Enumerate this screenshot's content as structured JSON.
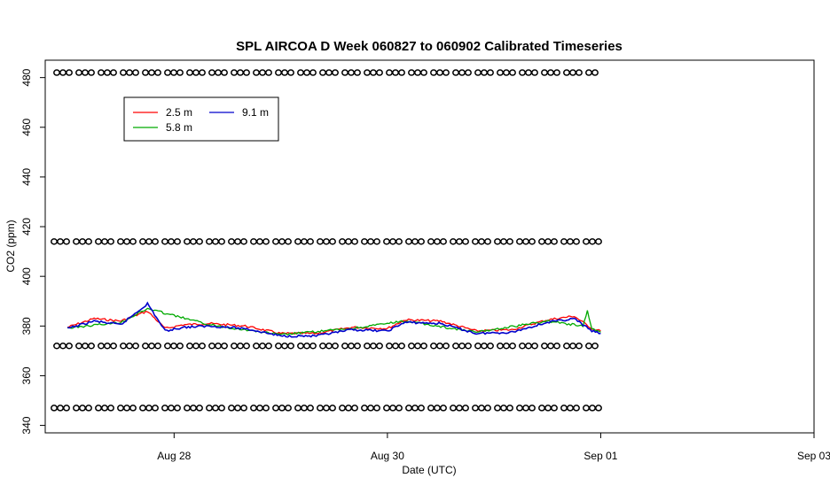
{
  "chart_data": {
    "type": "line",
    "title": "SPL AIRCOA D  Week 060827 to 060902  Calibrated Timeseries",
    "xlabel": "Date (UTC)",
    "ylabel": "CO2 (ppm)",
    "x_ticks": [
      "Aug 28",
      "Aug 30",
      "Sep 01",
      "Sep 03"
    ],
    "y_ticks": [
      340,
      360,
      380,
      400,
      420,
      440,
      460,
      480
    ],
    "xlim": [
      "2006-08-26T19:00",
      "2006-09-03T00:00"
    ],
    "ylim": [
      337,
      487
    ],
    "grid": false,
    "legend": "top-left",
    "series": [
      {
        "name": "2.5 m",
        "color": "#ff0000",
        "x": [
          "2006-08-27T00:00",
          "2006-08-27T06:00",
          "2006-08-27T12:00",
          "2006-08-27T18:00",
          "2006-08-27T22:00",
          "2006-08-28T02:00",
          "2006-08-28T08:00",
          "2006-08-28T16:00",
          "2006-08-29T00:00",
          "2006-08-29T08:00",
          "2006-08-29T16:00",
          "2006-08-30T00:00",
          "2006-08-30T04:00",
          "2006-08-30T12:00",
          "2006-08-30T20:00",
          "2006-08-31T04:00",
          "2006-08-31T12:00",
          "2006-08-31T18:00",
          "2006-08-31T22:00",
          "2006-09-01T00:00"
        ],
        "values": [
          379.5,
          383.0,
          382.0,
          386.0,
          379.0,
          380.5,
          381.0,
          380.0,
          377.0,
          377.0,
          379.5,
          379.0,
          382.5,
          382.0,
          378.0,
          378.5,
          382.5,
          384.0,
          379.0,
          378.0
        ]
      },
      {
        "name": "9.1 m",
        "color": "#0000cc",
        "x": [
          "2006-08-27T00:00",
          "2006-08-27T06:00",
          "2006-08-27T12:00",
          "2006-08-27T18:00",
          "2006-08-27T22:00",
          "2006-08-28T02:00",
          "2006-08-28T08:00",
          "2006-08-28T16:00",
          "2006-08-29T00:00",
          "2006-08-29T08:00",
          "2006-08-29T16:00",
          "2006-08-30T00:00",
          "2006-08-30T04:00",
          "2006-08-30T12:00",
          "2006-08-30T20:00",
          "2006-08-31T04:00",
          "2006-08-31T12:00",
          "2006-08-31T18:00",
          "2006-08-31T22:00",
          "2006-09-01T00:00"
        ],
        "values": [
          379.0,
          382.0,
          380.5,
          389.0,
          378.0,
          379.5,
          380.0,
          379.0,
          376.0,
          376.0,
          378.5,
          378.0,
          381.5,
          381.0,
          377.0,
          377.5,
          381.5,
          383.0,
          378.0,
          377.0
        ]
      },
      {
        "name": "5.8 m",
        "color": "#00aa00",
        "x": [
          "2006-08-27T00:00",
          "2006-08-27T12:00",
          "2006-08-27T18:00",
          "2006-08-28T08:00",
          "2006-08-29T00:00",
          "2006-08-29T16:00",
          "2006-08-30T04:00",
          "2006-08-30T20:00",
          "2006-08-31T12:00",
          "2006-08-31T20:00",
          "2006-08-31T21:00",
          "2006-08-31T22:00",
          "2006-09-01T00:00"
        ],
        "values": [
          379.2,
          381.5,
          387.0,
          380.5,
          376.5,
          379.0,
          382.0,
          377.5,
          382.0,
          380.0,
          386.0,
          379.0,
          377.5
        ]
      }
    ],
    "calibration_levels": {
      "x_range": [
        "2006-08-26T21:00",
        "2006-09-01T00:00"
      ],
      "y": [
        347,
        372,
        414,
        482
      ]
    }
  }
}
